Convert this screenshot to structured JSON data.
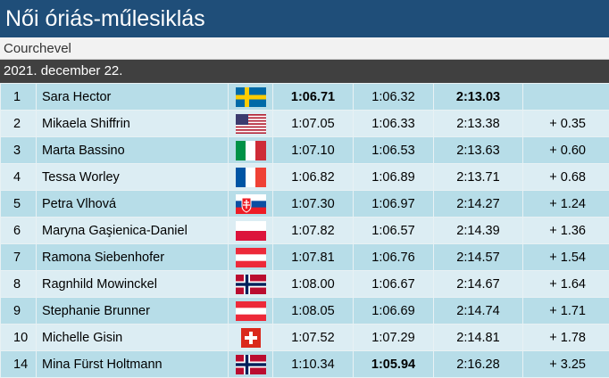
{
  "header": {
    "title": "Női óriás-műlesiklás",
    "location": "Courchevel",
    "date": "2021. december 22."
  },
  "table": {
    "rows": [
      [
        "1",
        "Sara Hector",
        "1:06.71",
        "1:06.32",
        "2:13.03"
      ],
      [
        "2",
        "Mikaela Shiffrin",
        "1:07.05",
        "1:06.33",
        "2:13.38",
        "+ 0.35"
      ],
      [
        "3",
        "Marta Bassino",
        "1:07.10",
        "1:06.53",
        "2:13.63",
        "+ 0.60"
      ],
      [
        "4",
        "Tessa Worley",
        "1:06.82",
        "1:06.89",
        "2:13.71",
        "+ 0.68"
      ],
      [
        "5",
        "Petra Vlhová",
        "1:07.30",
        "1:06.97",
        "2:14.27",
        "+ 1.24"
      ],
      [
        "6",
        "Maryna Gaşienica-Daniel",
        "1:07.82",
        "1:06.57",
        "2:14.39",
        "+ 1.36"
      ],
      [
        "7",
        "Ramona Siebenhofer",
        "1:07.81",
        "1:06.76",
        "2:14.57",
        "+ 1.54"
      ],
      [
        "8",
        "Ragnhild Mowinckel",
        "1:08.00",
        "1:06.67",
        "2:14.67",
        "+ 1.64"
      ],
      [
        "9",
        "Stephanie Brunner",
        "1:08.05",
        "1:06.69",
        "2:14.74",
        "+ 1.71"
      ],
      [
        "10",
        "Michelle Gisin",
        "1:07.52",
        "1:07.29",
        "2:14.81",
        "+ 1.78"
      ],
      [
        "14",
        "Mina Fürst Holtmann",
        "1:10.34",
        "1:05.94",
        "2:16.28",
        "+ 3.25"
      ]
    ]
  }
}
